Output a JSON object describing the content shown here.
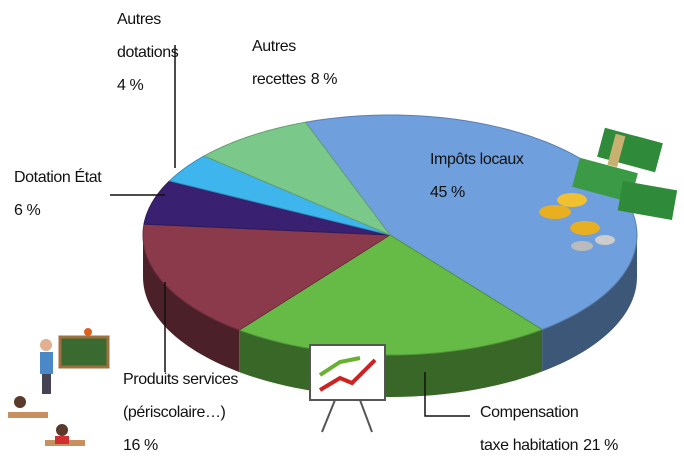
{
  "chart_data": {
    "type": "pie3d",
    "categories": [
      "Impôts locaux",
      "Compensation taxe habitation",
      "Produits services (périscolaire…)",
      "Dotation État",
      "Autres dotations",
      "Autres recettes"
    ],
    "values": [
      45,
      21,
      16,
      6,
      4,
      8
    ],
    "value_labels": [
      "45 %",
      "21 %",
      "16 %",
      "6 %",
      "4 %",
      "8 %"
    ],
    "colors": [
      "#6f9fdc",
      "#66bb47",
      "#8a3a4b",
      "#3a2070",
      "#3fb5ee",
      "#7bc88b"
    ]
  }
}
